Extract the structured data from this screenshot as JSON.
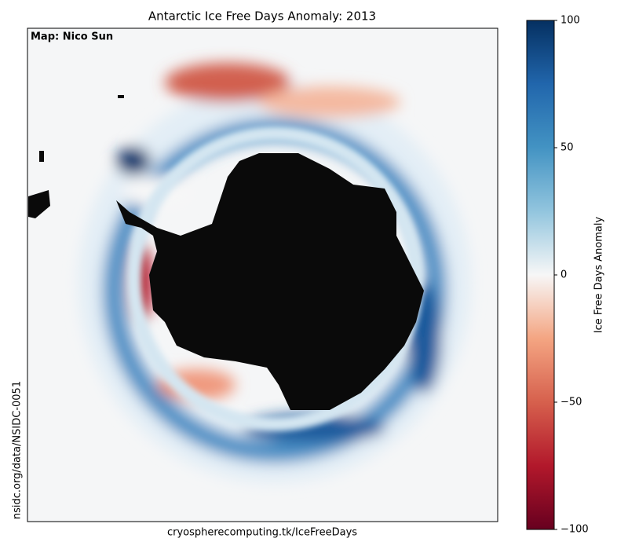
{
  "title": "Antarctic Ice Free Days Anomaly: 2013",
  "credit": "Map: Nico Sun",
  "source_left": "nsidc.org/data/NSIDC-0051",
  "source_bottom": "cryospherecomputing.tk/IceFreeDays",
  "colorbar": {
    "label": "Ice Free Days Anomaly",
    "lim": [
      -100,
      100
    ],
    "ticks": [
      {
        "value": -100,
        "label": "−100"
      },
      {
        "value": -50,
        "label": "−50"
      },
      0,
      50,
      100
    ]
  }
}
